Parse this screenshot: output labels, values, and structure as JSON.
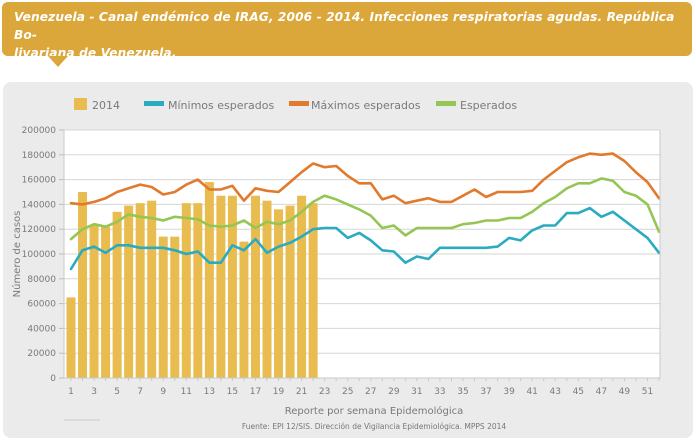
{
  "banner": {
    "title_line1": "Venezuela - Canal endémico de IRAG, 2006 - 2014. Infecciones respiratorias agudas. República Bo-",
    "title_line2": "livariana de Venezuela."
  },
  "colors": {
    "banner": "#dba63a",
    "bars_2014": "#e8bc4f",
    "minimos": "#2aabc2",
    "maximos": "#e27a2e",
    "esperados": "#95c653",
    "card_background": "#ebebeb"
  },
  "chart_data": {
    "type": "bar",
    "title": "Venezuela - Canal endémico de IRAG, 2006 - 2014",
    "xlabel": "Reporte por semana Epidemológica",
    "ylabel": "Número de casos",
    "ylim": [
      0,
      200000
    ],
    "yticks": [
      "0",
      "20000",
      "40000",
      "60000",
      "80000",
      "100000",
      "120000",
      "140000",
      "160000",
      "180000",
      "200000"
    ],
    "xticks": [
      "1",
      "3",
      "5",
      "7",
      "9",
      "11",
      "13",
      "15",
      "17",
      "19",
      "21",
      "23",
      "25",
      "27",
      "29",
      "31",
      "33",
      "35",
      "37",
      "39",
      "41",
      "43",
      "45",
      "47",
      "49",
      "51"
    ],
    "x_range": [
      1,
      52
    ],
    "grid": true,
    "legend_position": "top",
    "source": "Fuente: EPI 12/SIS. Dirección de Vigilancia Epidemiológica. MPPS 2014",
    "series": [
      {
        "name": "2014",
        "kind": "bar",
        "x": [
          1,
          2,
          3,
          4,
          5,
          6,
          7,
          8,
          9,
          10,
          11,
          12,
          13,
          14,
          15,
          16,
          17,
          18,
          19,
          20,
          21,
          22,
          23
        ],
        "values": [
          65000,
          150000,
          123000,
          122000,
          134000,
          139000,
          141000,
          143000,
          114000,
          114000,
          141000,
          141000,
          158000,
          147000,
          147000,
          110000,
          147000,
          143000,
          136000,
          139000,
          147000,
          141000,
          0
        ]
      },
      {
        "name": "Mínimos esperados",
        "kind": "line",
        "x": [
          1,
          2,
          3,
          4,
          5,
          6,
          7,
          8,
          9,
          10,
          11,
          12,
          13,
          14,
          15,
          16,
          17,
          18,
          19,
          20,
          21,
          22,
          23,
          24,
          25,
          26,
          27,
          28,
          29,
          30,
          31,
          32,
          33,
          34,
          35,
          36,
          37,
          38,
          39,
          40,
          41,
          42,
          43,
          44,
          45,
          46,
          47,
          48,
          49,
          50,
          51,
          52
        ],
        "values": [
          88000,
          103000,
          106000,
          101000,
          107000,
          107000,
          105000,
          105000,
          105000,
          103000,
          100000,
          102000,
          93000,
          93000,
          107000,
          103000,
          112000,
          101000,
          106000,
          109000,
          114000,
          120000,
          121000,
          121000,
          113000,
          117000,
          111000,
          103000,
          102000,
          93000,
          98000,
          96000,
          105000,
          105000,
          105000,
          105000,
          105000,
          106000,
          113000,
          111000,
          119000,
          123000,
          123000,
          133000,
          133000,
          137000,
          130000,
          134000,
          127000,
          120000,
          113000,
          101000
        ]
      },
      {
        "name": "Máximos esperados",
        "kind": "line",
        "x": [
          1,
          2,
          3,
          4,
          5,
          6,
          7,
          8,
          9,
          10,
          11,
          12,
          13,
          14,
          15,
          16,
          17,
          18,
          19,
          20,
          21,
          22,
          23,
          24,
          25,
          26,
          27,
          28,
          29,
          30,
          31,
          32,
          33,
          34,
          35,
          36,
          37,
          38,
          39,
          40,
          41,
          42,
          43,
          44,
          45,
          46,
          47,
          48,
          49,
          50,
          51,
          52
        ],
        "values": [
          141000,
          140000,
          142000,
          145000,
          150000,
          153000,
          156000,
          154000,
          148000,
          150000,
          156000,
          160000,
          152000,
          152000,
          155000,
          143000,
          153000,
          151000,
          150000,
          158000,
          166000,
          173000,
          170000,
          171000,
          163000,
          157000,
          157000,
          144000,
          147000,
          141000,
          143000,
          145000,
          142000,
          142000,
          147000,
          152000,
          146000,
          150000,
          150000,
          150000,
          151000,
          160000,
          167000,
          174000,
          178000,
          181000,
          180000,
          181000,
          175000,
          166000,
          158000,
          145000
        ]
      },
      {
        "name": "Esperados",
        "kind": "line",
        "x": [
          1,
          2,
          3,
          4,
          5,
          6,
          7,
          8,
          9,
          10,
          11,
          12,
          13,
          14,
          15,
          16,
          17,
          18,
          19,
          20,
          21,
          22,
          23,
          24,
          25,
          26,
          27,
          28,
          29,
          30,
          31,
          32,
          33,
          34,
          35,
          36,
          37,
          38,
          39,
          40,
          41,
          42,
          43,
          44,
          45,
          46,
          47,
          48,
          49,
          50,
          51,
          52
        ],
        "values": [
          112000,
          120000,
          124000,
          122000,
          126000,
          132000,
          130000,
          129000,
          127000,
          130000,
          129000,
          128000,
          123000,
          122000,
          123000,
          127000,
          121000,
          126000,
          124000,
          127000,
          134000,
          142000,
          147000,
          144000,
          140000,
          136000,
          131000,
          121000,
          123000,
          115000,
          121000,
          121000,
          121000,
          121000,
          124000,
          125000,
          127000,
          127000,
          129000,
          129000,
          134000,
          141000,
          146000,
          153000,
          157000,
          157000,
          161000,
          159000,
          150000,
          147000,
          140000,
          118000
        ]
      }
    ],
    "bars_color": "#e8bc4f"
  }
}
